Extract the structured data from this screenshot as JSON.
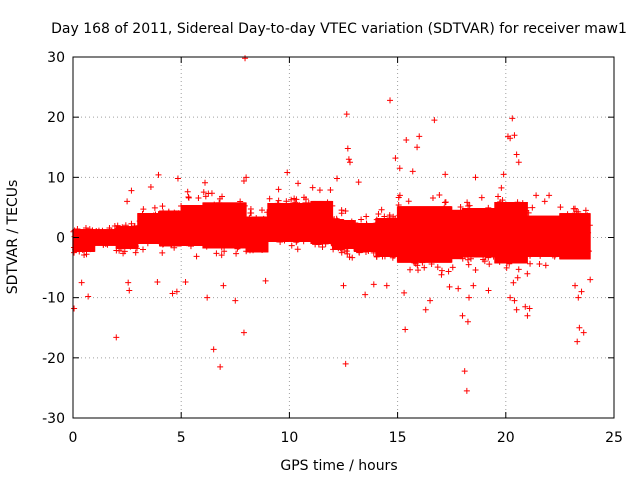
{
  "chart_data": {
    "type": "scatter",
    "title": "Day 168 of 2011, Sidereal Day-to-day VTEC variation (SDTVAR) for receiver maw1",
    "xlabel": "GPS time / hours",
    "ylabel": "SDTVAR / TECUs",
    "xlim": [
      0,
      25
    ],
    "ylim": [
      -30,
      30
    ],
    "xticks": [
      0,
      5,
      10,
      15,
      20,
      25
    ],
    "yticks": [
      -30,
      -20,
      -10,
      0,
      10,
      20,
      30
    ],
    "grid": true,
    "marker": "+",
    "marker_color": "#ff0000",
    "outliers": [
      {
        "x": 0.05,
        "y": -11.8
      },
      {
        "x": 0.4,
        "y": -7.5
      },
      {
        "x": 0.7,
        "y": -9.8
      },
      {
        "x": 2.0,
        "y": -16.6
      },
      {
        "x": 2.55,
        "y": -7.5
      },
      {
        "x": 2.6,
        "y": -8.8
      },
      {
        "x": 2.5,
        "y": 6.0
      },
      {
        "x": 2.7,
        "y": 7.8
      },
      {
        "x": 3.6,
        "y": 8.4
      },
      {
        "x": 3.95,
        "y": 10.4
      },
      {
        "x": 3.9,
        "y": -7.4
      },
      {
        "x": 4.6,
        "y": -9.3
      },
      {
        "x": 4.8,
        "y": -9.0
      },
      {
        "x": 4.85,
        "y": 9.8
      },
      {
        "x": 5.2,
        "y": -7.4
      },
      {
        "x": 5.3,
        "y": 7.6
      },
      {
        "x": 6.1,
        "y": 9.1
      },
      {
        "x": 6.2,
        "y": -10.0
      },
      {
        "x": 6.5,
        "y": -18.6
      },
      {
        "x": 6.8,
        "y": -21.5
      },
      {
        "x": 6.95,
        "y": -8.0
      },
      {
        "x": 7.5,
        "y": -10.5
      },
      {
        "x": 7.9,
        "y": -15.8
      },
      {
        "x": 7.95,
        "y": 29.8
      },
      {
        "x": 7.9,
        "y": 9.4
      },
      {
        "x": 8.0,
        "y": 10.0
      },
      {
        "x": 8.9,
        "y": -7.2
      },
      {
        "x": 9.5,
        "y": 8.0
      },
      {
        "x": 9.9,
        "y": 10.8
      },
      {
        "x": 10.4,
        "y": 9.0
      },
      {
        "x": 12.2,
        "y": 9.8
      },
      {
        "x": 12.5,
        "y": -8.0
      },
      {
        "x": 12.6,
        "y": -21.0
      },
      {
        "x": 12.65,
        "y": 20.5
      },
      {
        "x": 12.7,
        "y": 14.8
      },
      {
        "x": 12.75,
        "y": 13.0
      },
      {
        "x": 12.8,
        "y": 12.5
      },
      {
        "x": 13.2,
        "y": 9.2
      },
      {
        "x": 13.5,
        "y": -9.5
      },
      {
        "x": 13.9,
        "y": -7.8
      },
      {
        "x": 14.5,
        "y": -8.0
      },
      {
        "x": 14.65,
        "y": 22.8
      },
      {
        "x": 14.9,
        "y": 13.2
      },
      {
        "x": 15.1,
        "y": 11.5
      },
      {
        "x": 15.3,
        "y": -9.2
      },
      {
        "x": 15.35,
        "y": -15.3
      },
      {
        "x": 15.4,
        "y": 16.2
      },
      {
        "x": 15.7,
        "y": 11.0
      },
      {
        "x": 15.9,
        "y": 15.0
      },
      {
        "x": 16.0,
        "y": 16.8
      },
      {
        "x": 16.3,
        "y": -12.0
      },
      {
        "x": 16.5,
        "y": -10.5
      },
      {
        "x": 16.7,
        "y": 19.5
      },
      {
        "x": 17.2,
        "y": 10.5
      },
      {
        "x": 17.4,
        "y": -8.2
      },
      {
        "x": 17.8,
        "y": -8.5
      },
      {
        "x": 18.0,
        "y": -13.0
      },
      {
        "x": 18.1,
        "y": -22.2
      },
      {
        "x": 18.2,
        "y": -25.5
      },
      {
        "x": 18.25,
        "y": -14.0
      },
      {
        "x": 18.3,
        "y": -10.0
      },
      {
        "x": 18.5,
        "y": -8.0
      },
      {
        "x": 18.6,
        "y": 10.0
      },
      {
        "x": 19.2,
        "y": -8.8
      },
      {
        "x": 19.9,
        "y": 10.5
      },
      {
        "x": 20.1,
        "y": 16.8
      },
      {
        "x": 20.2,
        "y": 16.5
      },
      {
        "x": 20.3,
        "y": 19.8
      },
      {
        "x": 20.4,
        "y": 17.0
      },
      {
        "x": 20.5,
        "y": 13.8
      },
      {
        "x": 20.6,
        "y": 12.5
      },
      {
        "x": 20.2,
        "y": -10.0
      },
      {
        "x": 20.4,
        "y": -10.5
      },
      {
        "x": 20.5,
        "y": -12.0
      },
      {
        "x": 20.9,
        "y": -11.5
      },
      {
        "x": 21.0,
        "y": -13.0
      },
      {
        "x": 21.1,
        "y": -11.8
      },
      {
        "x": 21.4,
        "y": 7.0
      },
      {
        "x": 21.8,
        "y": 6.0
      },
      {
        "x": 22.0,
        "y": 7.0
      },
      {
        "x": 23.2,
        "y": -8.0
      },
      {
        "x": 23.3,
        "y": -17.3
      },
      {
        "x": 23.35,
        "y": -10.0
      },
      {
        "x": 23.4,
        "y": -15.0
      },
      {
        "x": 23.6,
        "y": -15.8
      },
      {
        "x": 23.5,
        "y": -9.0
      },
      {
        "x": 23.7,
        "y": 4.5
      },
      {
        "x": 23.9,
        "y": -7.0
      }
    ]
  }
}
